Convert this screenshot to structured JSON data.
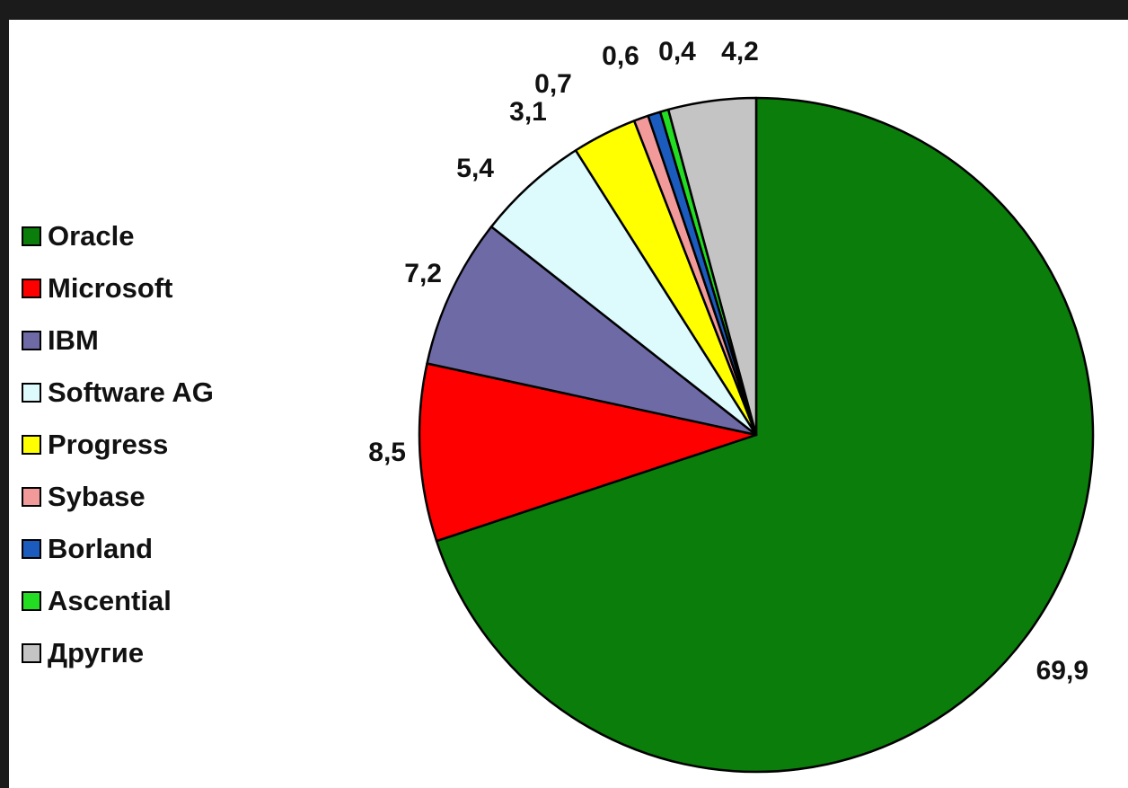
{
  "chart_data": {
    "type": "pie",
    "title": "",
    "legend_position": "left",
    "slices": [
      {
        "name": "Oracle",
        "label": "69,9",
        "value": 69.9,
        "color": "#0a7d0a"
      },
      {
        "name": "Microsoft",
        "label": "8,5",
        "value": 8.5,
        "color": "#ff0000"
      },
      {
        "name": "IBM",
        "label": "7,2",
        "value": 7.2,
        "color": "#6e6aa6"
      },
      {
        "name": "Software AG",
        "label": "5,4",
        "value": 5.4,
        "color": "#ddfafc"
      },
      {
        "name": "Progress",
        "label": "3,1",
        "value": 3.1,
        "color": "#ffff00"
      },
      {
        "name": "Sybase",
        "label": "0,7",
        "value": 0.7,
        "color": "#f29a9a"
      },
      {
        "name": "Borland",
        "label": "0,6",
        "value": 0.6,
        "color": "#1a5bbd"
      },
      {
        "name": "Ascential",
        "label": "0,4",
        "value": 0.4,
        "color": "#22dd22"
      },
      {
        "name": "Другие",
        "label": "4,2",
        "value": 4.2,
        "color": "#c4c4c4"
      }
    ]
  }
}
